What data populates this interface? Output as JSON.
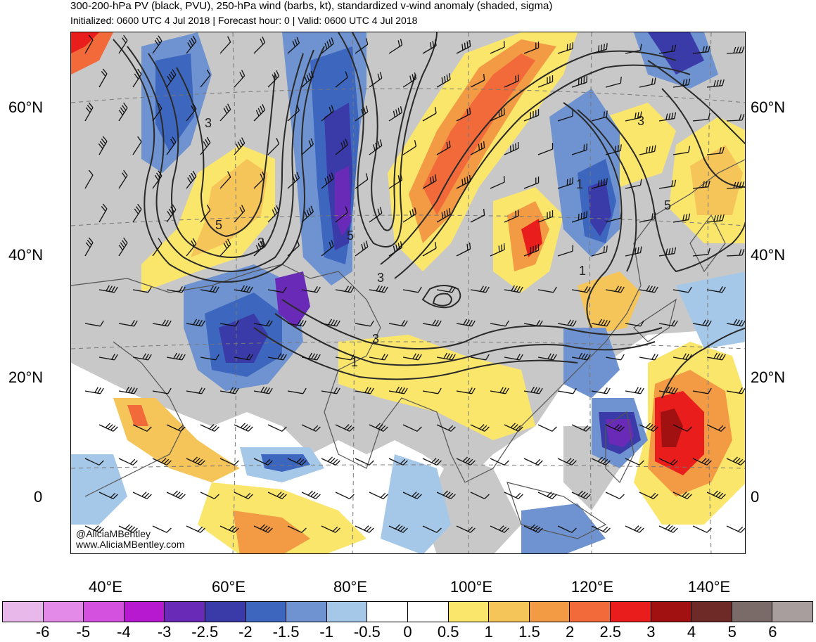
{
  "title": {
    "line1": "300-200-hPa PV (black, PVU), 250-hPa wind (barbs, kt), standardized v-wind anomaly (shaded, sigma)",
    "line2": "Initialized: 0600 UTC 4 Jul 2018 | Forecast hour: 0 | Valid: 0600 UTC 4 Jul 2018"
  },
  "lat_labels": [
    "60°N",
    "40°N",
    "20°N",
    "0"
  ],
  "lon_labels": [
    "40°E",
    "60°E",
    "80°E",
    "100°E",
    "120°E",
    "140°E"
  ],
  "credit": [
    "@AliciaMBentley",
    "www.AliciaMBentley.com"
  ],
  "contour_labels": [
    "3",
    "5",
    "3",
    "5",
    "3",
    "3",
    "1",
    "3",
    "5",
    "1",
    "1"
  ],
  "colorbar": {
    "colors": [
      "#e9b8ea",
      "#e38ae8",
      "#d451df",
      "#b719d1",
      "#6a2ab8",
      "#3a3aa8",
      "#3d66bf",
      "#6e93d0",
      "#a6c8e8",
      "#ffffff",
      "#ffffff",
      "#fbe66c",
      "#f6c55a",
      "#f39a45",
      "#f26a3a",
      "#e81d1c",
      "#a11111",
      "#6e2a26",
      "#7a6b68",
      "#a89e9d"
    ],
    "labels": [
      "-6",
      "-5",
      "-4",
      "-3",
      "-2.5",
      "-2",
      "-1.5",
      "-1",
      "-0.5",
      "0",
      "0.5",
      "1",
      "1.5",
      "2",
      "2.5",
      "3",
      "4",
      "5",
      "6"
    ]
  },
  "colors": {
    "land": "#c8c8c8",
    "neutral": "#ffffff",
    "pv_contour": "#2a2a2a",
    "coastline": "#555555"
  }
}
